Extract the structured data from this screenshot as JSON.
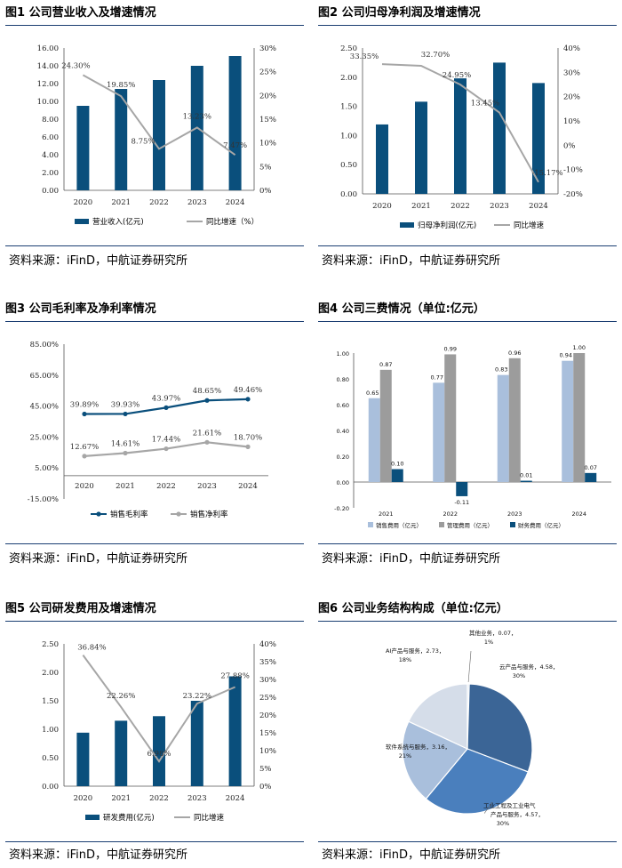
{
  "colors": {
    "bar_dark": "#0a4f7c",
    "line_gray": "#a6a6a6",
    "rule": "#1a3e72",
    "light_blue": "#a9bfdc",
    "mid_gray": "#9c9c9c"
  },
  "fig1": {
    "title": "图1  公司营业收入及增速情况",
    "source": "资料来源：iFinD，中航证券研究所"
  },
  "fig2": {
    "title": "图2  公司归母净利润及增速情况",
    "source": "资料来源：iFinD，中航证券研究所"
  },
  "fig3": {
    "title": "图3  公司毛利率及净利率情况",
    "source": "资料来源：iFinD，中航证券研究所"
  },
  "fig4": {
    "title": "图4  公司三费情况（单位:亿元）",
    "source": "资料来源：iFinD，中航证券研究所"
  },
  "fig5": {
    "title": "图5  公司研发费用及增速情况",
    "source": "资料来源：iFinD，中航证券研究所"
  },
  "fig6": {
    "title": "图6  公司业务结构构成（单位:亿元）",
    "source": "资料来源：iFinD，中航证券研究所"
  },
  "chart_data": [
    {
      "id": "fig1",
      "type": "bar+line",
      "categories": [
        "2020",
        "2021",
        "2022",
        "2023",
        "2024"
      ],
      "series": [
        {
          "name": "营业收入(亿元)",
          "kind": "bar",
          "axis": "left",
          "values": [
            9.5,
            11.4,
            12.4,
            14.0,
            15.1
          ]
        },
        {
          "name": "同比增速（%）",
          "kind": "line",
          "axis": "right",
          "values": [
            24.3,
            19.85,
            8.75,
            13.23,
            7.47
          ],
          "labels": [
            "24.30%",
            "19.85%",
            "8.75%",
            "13.23%",
            "7.47%"
          ]
        }
      ],
      "ylim": [
        0,
        16
      ],
      "yticks": [
        "0.00",
        "2.00",
        "4.00",
        "6.00",
        "8.00",
        "10.00",
        "12.00",
        "14.00",
        "16.00"
      ],
      "y2lim": [
        0,
        30
      ],
      "y2ticks": [
        "0%",
        "5%",
        "10%",
        "15%",
        "20%",
        "25%",
        "30%"
      ]
    },
    {
      "id": "fig2",
      "type": "bar+line",
      "categories": [
        "2020",
        "2021",
        "2022",
        "2023",
        "2024"
      ],
      "series": [
        {
          "name": "归母净利润(亿元)",
          "kind": "bar",
          "axis": "left",
          "values": [
            1.19,
            1.58,
            1.98,
            2.25,
            1.9
          ]
        },
        {
          "name": "同比增速",
          "kind": "line",
          "axis": "right",
          "values": [
            33.35,
            32.7,
            24.95,
            13.45,
            -15.17
          ],
          "labels": [
            "33.35%",
            "32.70%",
            "24.95%",
            "13.45%",
            "-15.17%"
          ]
        }
      ],
      "ylim": [
        0,
        2.5
      ],
      "yticks": [
        "0.00",
        "0.50",
        "1.00",
        "1.50",
        "2.00",
        "2.50"
      ],
      "y2lim": [
        -20,
        40
      ],
      "y2ticks": [
        "-20%",
        "-10%",
        "0%",
        "10%",
        "20%",
        "30%",
        "40%"
      ]
    },
    {
      "id": "fig3",
      "type": "line",
      "categories": [
        "2020",
        "2021",
        "2022",
        "2023",
        "2024"
      ],
      "series": [
        {
          "name": "销售毛利率",
          "values": [
            39.89,
            39.93,
            43.97,
            48.65,
            49.46
          ],
          "labels": [
            "39.89%",
            "39.93%",
            "43.97%",
            "48.65%",
            "49.46%"
          ]
        },
        {
          "name": "销售净利率",
          "values": [
            12.67,
            14.61,
            17.44,
            21.61,
            18.7
          ],
          "labels": [
            "12.67%",
            "14.61%",
            "17.44%",
            "21.61%",
            "18.70%"
          ]
        }
      ],
      "ylim": [
        -15,
        85
      ],
      "yticks": [
        "-15.00%",
        "5.00%",
        "25.00%",
        "45.00%",
        "65.00%",
        "85.00%"
      ]
    },
    {
      "id": "fig4",
      "type": "grouped-bar",
      "categories": [
        "2021",
        "2022",
        "2023",
        "2024"
      ],
      "series": [
        {
          "name": "销售费用（亿元）",
          "values": [
            0.65,
            0.77,
            0.83,
            0.94
          ],
          "labels": [
            "0.65",
            "0.77",
            "0.83",
            "0.94"
          ]
        },
        {
          "name": "管理费用（亿元）",
          "values": [
            0.87,
            0.99,
            0.96,
            1.0
          ],
          "labels": [
            "0.87",
            "0.99",
            "0.96",
            "1.00"
          ]
        },
        {
          "name": "财务费用（亿元）",
          "values": [
            0.1,
            -0.11,
            0.01,
            0.07
          ],
          "labels": [
            "0.10",
            "-0.11",
            "0.01",
            "0.07"
          ]
        }
      ],
      "ylim": [
        -0.2,
        1.0
      ],
      "yticks": [
        "-0.20",
        "0.00",
        "0.20",
        "0.40",
        "0.60",
        "0.80",
        "1.00"
      ]
    },
    {
      "id": "fig5",
      "type": "bar+line",
      "categories": [
        "2020",
        "2021",
        "2022",
        "2023",
        "2024"
      ],
      "series": [
        {
          "name": "研发费用(亿元)",
          "kind": "bar",
          "axis": "left",
          "values": [
            0.94,
            1.15,
            1.23,
            1.5,
            1.93
          ]
        },
        {
          "name": "同比增速",
          "kind": "line",
          "axis": "right",
          "values": [
            36.84,
            22.26,
            6.98,
            23.22,
            27.88
          ],
          "labels": [
            "36.84%",
            "22.26%",
            "6.98%",
            "23.22%",
            "27.88%"
          ]
        }
      ],
      "ylim": [
        0,
        2.5
      ],
      "yticks": [
        "0.00",
        "0.50",
        "1.00",
        "1.50",
        "2.00",
        "2.50"
      ],
      "y2lim": [
        0,
        40
      ],
      "y2ticks": [
        "0%",
        "5%",
        "10%",
        "15%",
        "20%",
        "25%",
        "30%",
        "35%",
        "40%"
      ]
    },
    {
      "id": "fig6",
      "type": "pie",
      "slices": [
        {
          "name": "其他业务",
          "value": 0.07,
          "label1": "其他业务，0.07，",
          "label2": "1%",
          "color": "#dfe6f0"
        },
        {
          "name": "云产品与服务",
          "value": 4.58,
          "label1": "云产品与服务，4.58，",
          "label2": "30%",
          "color": "#3b6596"
        },
        {
          "name": "工业工程及工业电气产品与服务",
          "value": 4.57,
          "label1": "工业工程及工业电气",
          "label1b": "产品与服务，4.57，",
          "label2": "30%",
          "color": "#4a7fbd"
        },
        {
          "name": "软件系统与服务",
          "value": 3.16,
          "label1": "软件系统与服务，3.16，",
          "label2": "21%",
          "color": "#a9bfdc"
        },
        {
          "name": "AI产品与服务",
          "value": 2.73,
          "label1": "AI产品与服务，2.73，",
          "label2": "18%",
          "color": "#d5dde9"
        }
      ]
    }
  ]
}
